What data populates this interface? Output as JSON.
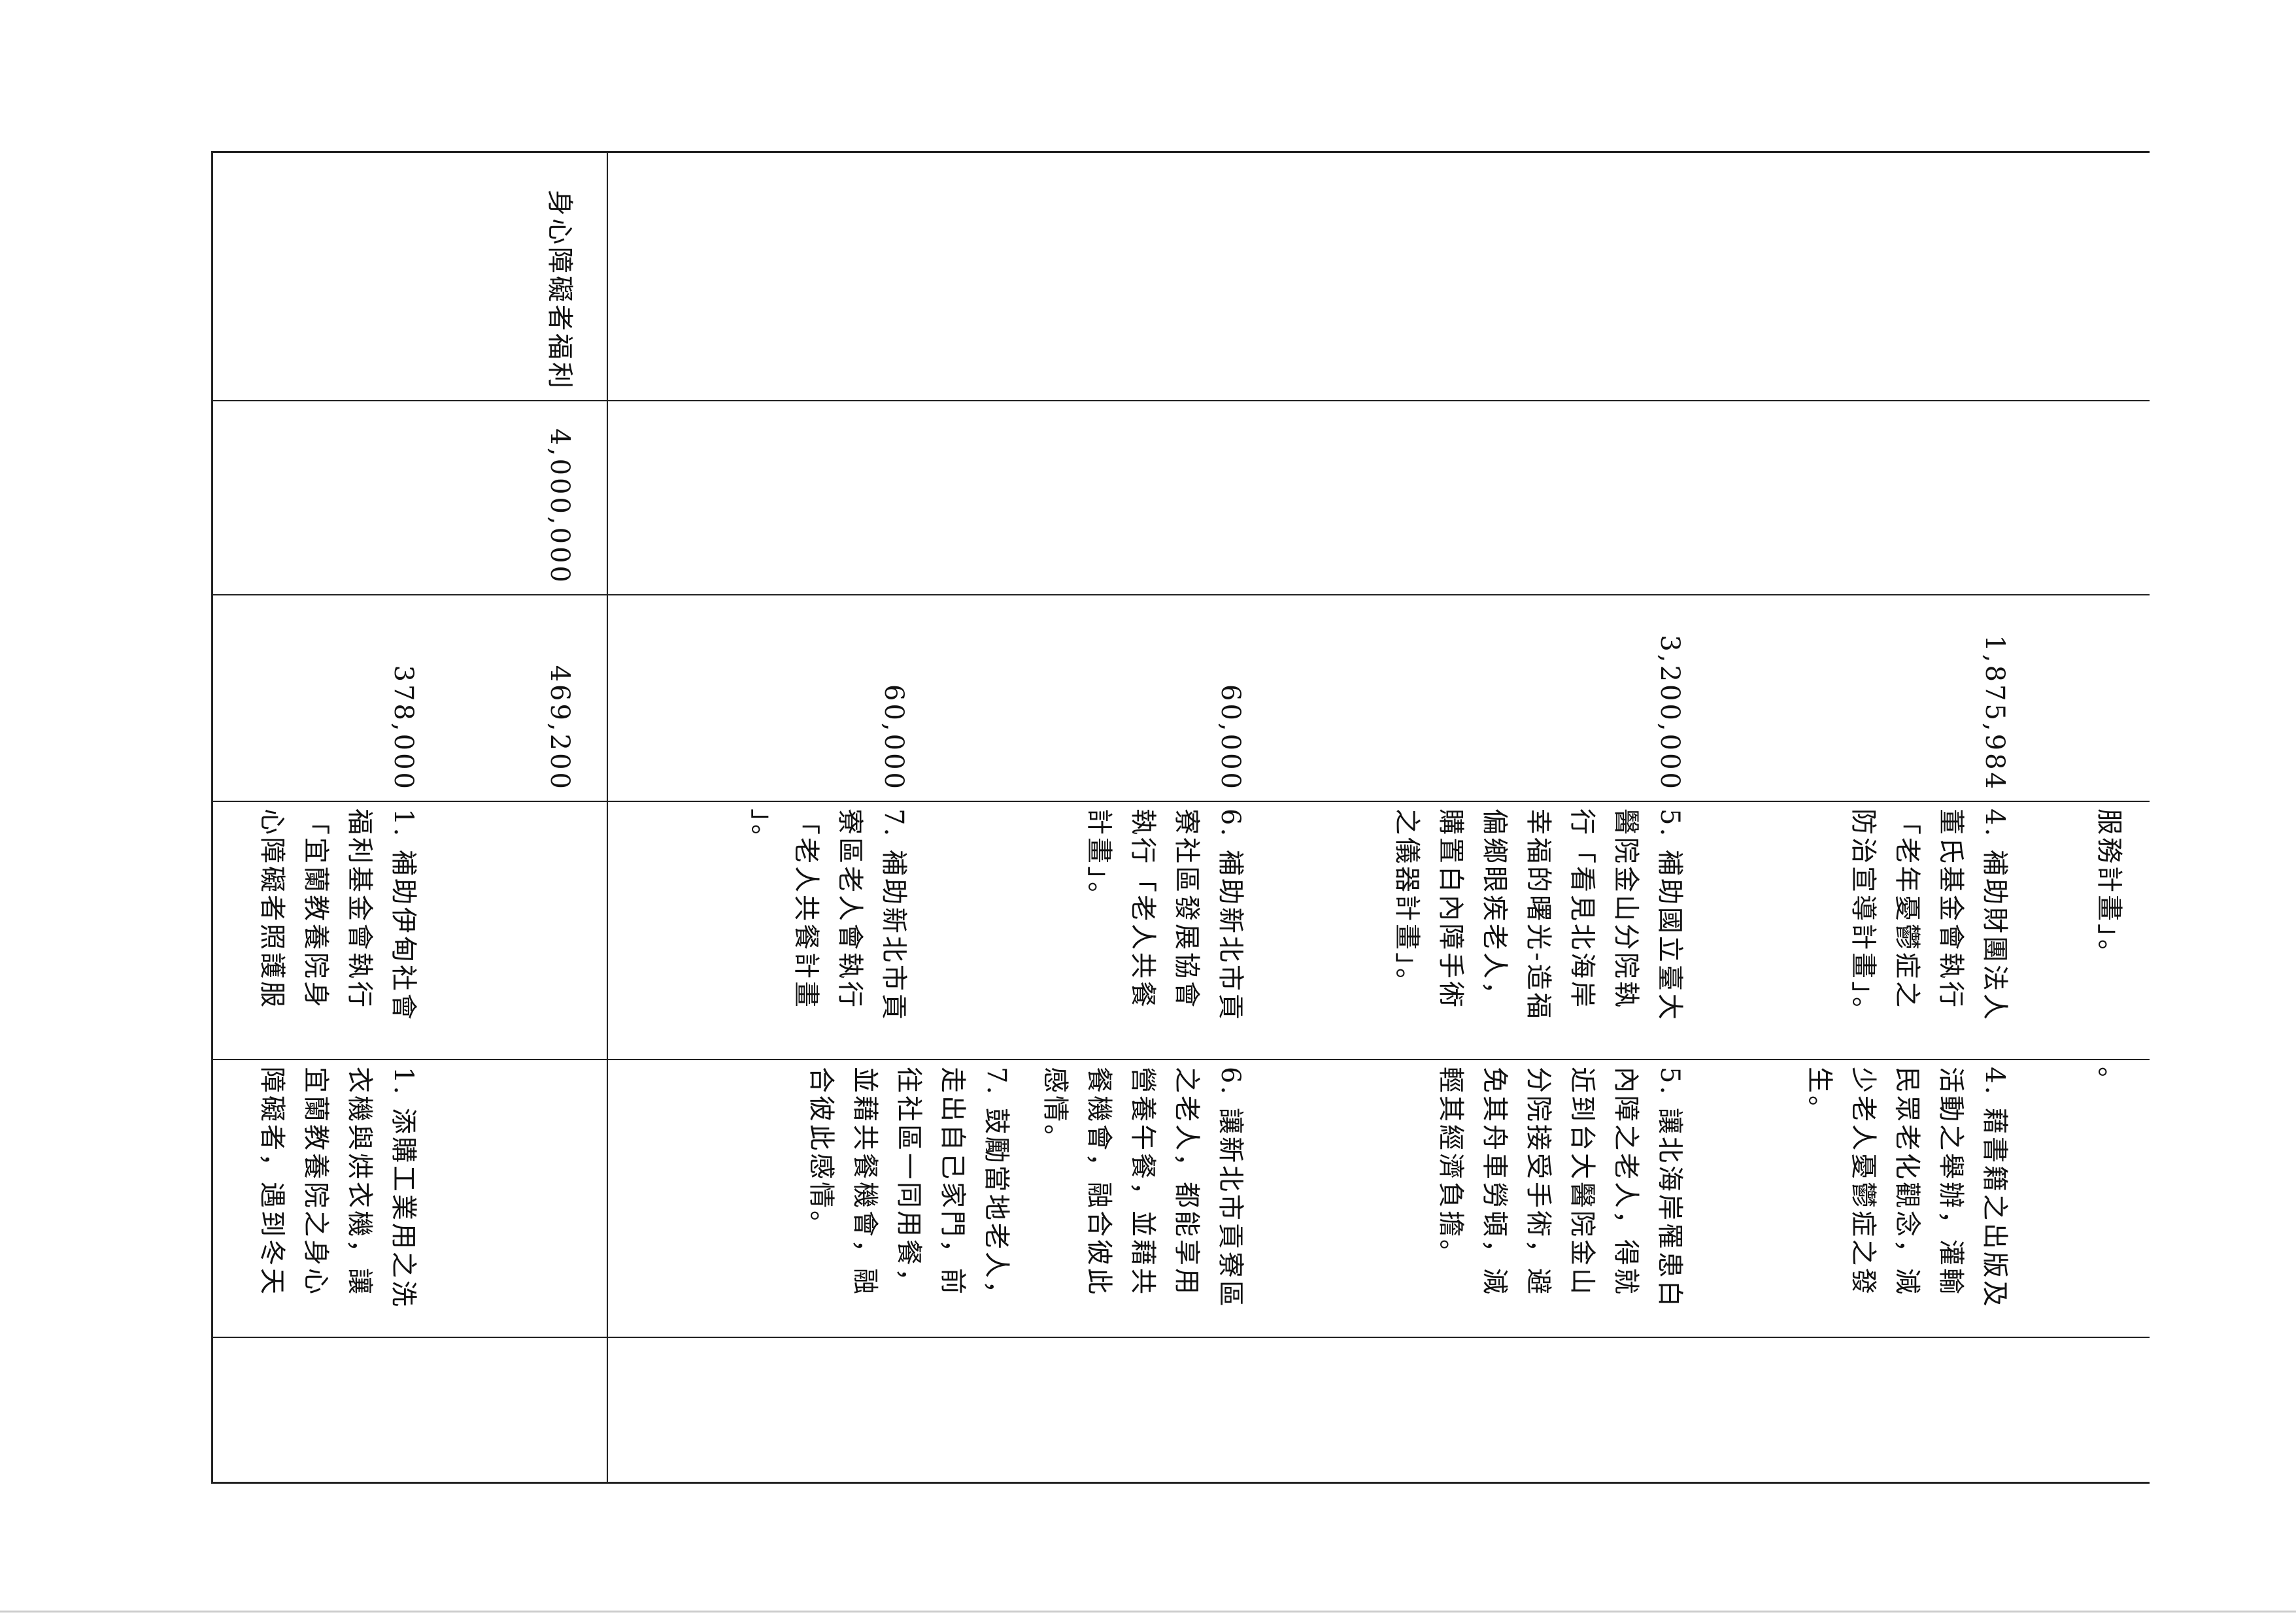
{
  "table": {
    "continued_row": {
      "amounts": [
        "1,875,984",
        "3,200,000",
        "60,000",
        "60,000"
      ],
      "plan_lines": [
        [
          "服務計畫」。"
        ],
        [
          "4. 補助財團法人",
          "董氏基金會執行",
          "「老年憂鬱症之",
          "防治宣導計畫」。"
        ],
        [
          "5. 補助國立臺大",
          "醫院金山分院執",
          "行「看見北海岸",
          "幸福的曙光-造福",
          "偏鄉眼疾老人，",
          "購置白內障手術",
          "之儀器計畫」。"
        ],
        [
          "6. 補助新北市貢",
          "寮社區發展協會",
          "執行「老人共餐",
          "計畫」。"
        ],
        [
          "7. 補助新北市貢",
          "寮區老人會執行",
          "「老人共餐計畫",
          "」。"
        ]
      ],
      "benefit_lines": [
        [
          "。"
        ],
        [
          "4. 藉書籍之出版及",
          "活動之舉辦，灌輸",
          "民眾老化觀念，減",
          "少老人憂鬱症之發",
          "生。"
        ],
        [
          "5. 讓北海岸罹患白",
          "內障之老人，得就",
          "近到台大醫院金山",
          "分院接受手術，避",
          "免其舟車勞頓，減",
          "輕其經濟負擔。"
        ],
        [
          "6. 讓新北市貢寮區",
          "之老人，都能享用",
          "營養午餐，並藉共",
          "餐機會，融合彼此",
          "感情。"
        ],
        [
          "7. 鼓勵當地老人，",
          "走出自己家門，前",
          "往社區一同用餐，",
          "並藉共餐機會，融",
          "合彼此感情。"
        ]
      ]
    },
    "row": {
      "category": "身心障礙者福利",
      "budget": "4,000,000",
      "amounts": [
        "469,200",
        "378,000"
      ],
      "plan_lines": [
        [
          "1. 補助伊甸社會",
          "福利基金會執行",
          "「宜蘭教養院身",
          "心障礙者照護服"
        ]
      ],
      "benefit_lines": [
        [
          "1. 添購工業用之洗",
          "衣機與烘衣機，讓",
          "宜蘭教養院之身心",
          "障礙者，遇到冬天"
        ]
      ]
    }
  }
}
